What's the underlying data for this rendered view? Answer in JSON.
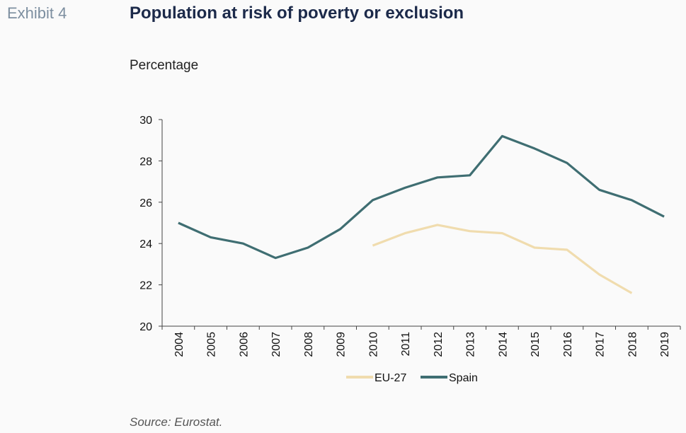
{
  "header": {
    "exhibit_label": "Exhibit 4",
    "title": "Population at risk of poverty or exclusion",
    "subtitle": "Percentage"
  },
  "footer": {
    "source": "Source: Eurostat."
  },
  "chart_data": {
    "type": "line",
    "title": "Population at risk of poverty or exclusion",
    "ylabel": "Percentage",
    "xlabel": "",
    "ylim": [
      20,
      30
    ],
    "yticks": [
      20,
      22,
      24,
      26,
      28,
      30
    ],
    "categories": [
      "2004",
      "2005",
      "2006",
      "2007",
      "2008",
      "2009",
      "2010",
      "2011",
      "2012",
      "2013",
      "2014",
      "2015",
      "2016",
      "2017",
      "2018",
      "2019"
    ],
    "grid": false,
    "legend_position": "bottom-center",
    "series": [
      {
        "name": "EU-27",
        "color": "#f0dcae",
        "values": [
          null,
          null,
          null,
          null,
          null,
          null,
          23.9,
          24.5,
          24.9,
          24.6,
          24.5,
          23.8,
          23.7,
          22.5,
          21.6,
          null
        ]
      },
      {
        "name": "Spain",
        "color": "#3f6e72",
        "values": [
          25.0,
          24.3,
          24.0,
          23.3,
          23.8,
          24.7,
          26.1,
          26.7,
          27.2,
          27.3,
          29.2,
          28.6,
          27.9,
          26.6,
          26.1,
          25.3
        ]
      }
    ]
  }
}
